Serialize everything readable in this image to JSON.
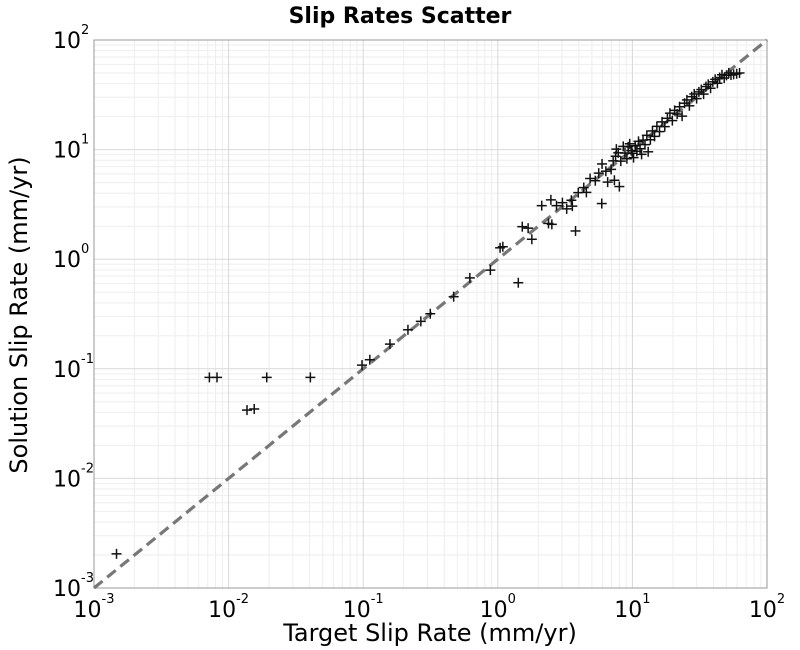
{
  "chart_data": {
    "type": "scatter",
    "title": "Slip Rates Scatter",
    "xlabel": "Target Slip Rate (mm/yr)",
    "ylabel": "Solution Slip Rate (mm/yr)",
    "x_scale": "log",
    "y_scale": "log",
    "xlim": [
      0.001,
      100
    ],
    "ylim": [
      0.001,
      100
    ],
    "x_ticks": [
      {
        "base": "10",
        "exp": "-3"
      },
      {
        "base": "10",
        "exp": "-2"
      },
      {
        "base": "10",
        "exp": "-1"
      },
      {
        "base": "10",
        "exp": "0"
      },
      {
        "base": "10",
        "exp": "1"
      },
      {
        "base": "10",
        "exp": "2"
      }
    ],
    "y_ticks": [
      {
        "base": "10",
        "exp": "-3"
      },
      {
        "base": "10",
        "exp": "-2"
      },
      {
        "base": "10",
        "exp": "-1"
      },
      {
        "base": "10",
        "exp": "0"
      },
      {
        "base": "10",
        "exp": "1"
      },
      {
        "base": "10",
        "exp": "2"
      }
    ],
    "grid": true,
    "marker": "+",
    "marker_color": "#111111",
    "reference_line": {
      "type": "y=x",
      "style": "dashed",
      "color": "#777777"
    },
    "points": [
      [
        0.00147,
        0.00205
      ],
      [
        0.0072,
        0.0835
      ],
      [
        0.0082,
        0.0835
      ],
      [
        0.0192,
        0.0835
      ],
      [
        0.0405,
        0.0835
      ],
      [
        0.0137,
        0.042
      ],
      [
        0.0155,
        0.043
      ],
      [
        0.098,
        0.108
      ],
      [
        0.112,
        0.121
      ],
      [
        0.158,
        0.168
      ],
      [
        0.215,
        0.227
      ],
      [
        0.268,
        0.271
      ],
      [
        0.315,
        0.318
      ],
      [
        0.47,
        0.455
      ],
      [
        0.62,
        0.675
      ],
      [
        0.88,
        0.795
      ],
      [
        1.04,
        1.27
      ],
      [
        1.09,
        1.3
      ],
      [
        1.42,
        0.61
      ],
      [
        1.52,
        1.98
      ],
      [
        1.68,
        1.92
      ],
      [
        1.79,
        1.52
      ],
      [
        2.12,
        3.08
      ],
      [
        2.48,
        3.48
      ],
      [
        2.38,
        2.12
      ],
      [
        2.52,
        2.08
      ],
      [
        2.73,
        3.08
      ],
      [
        3.02,
        3.28
      ],
      [
        3.25,
        2.88
      ],
      [
        3.52,
        3.45
      ],
      [
        3.58,
        3.05
      ],
      [
        3.78,
        1.81
      ],
      [
        3.96,
        4.05
      ],
      [
        4.35,
        4.5
      ],
      [
        4.55,
        4.07
      ],
      [
        4.85,
        5.45
      ],
      [
        5.3,
        5.2
      ],
      [
        5.62,
        6.1
      ],
      [
        5.92,
        3.22
      ],
      [
        5.95,
        7.4
      ],
      [
        6.35,
        6.35
      ],
      [
        6.55,
        5.05
      ],
      [
        6.95,
        6.6
      ],
      [
        7.2,
        7.9
      ],
      [
        7.35,
        5.25
      ],
      [
        7.5,
        8.7
      ],
      [
        7.6,
        10.1
      ],
      [
        7.85,
        9.35
      ],
      [
        8.0,
        4.6
      ],
      [
        8.2,
        7.85
      ],
      [
        8.55,
        10.7
      ],
      [
        8.8,
        9.3
      ],
      [
        9.1,
        8.25
      ],
      [
        9.3,
        10.6
      ],
      [
        9.55,
        11.3
      ],
      [
        9.8,
        9.8
      ],
      [
        10.0,
        9.25
      ],
      [
        10.2,
        8.45
      ],
      [
        10.5,
        10.85
      ],
      [
        10.8,
        9.65
      ],
      [
        11.1,
        11.9
      ],
      [
        11.4,
        10.2
      ],
      [
        11.7,
        9.05
      ],
      [
        12.0,
        12.2
      ],
      [
        12.4,
        11.1
      ],
      [
        12.8,
        13.5
      ],
      [
        13.1,
        9.55
      ],
      [
        13.6,
        12.3
      ],
      [
        14.1,
        14.8
      ],
      [
        14.6,
        13.2
      ],
      [
        15.2,
        16.3
      ],
      [
        15.9,
        14.6
      ],
      [
        16.6,
        17.9
      ],
      [
        17.4,
        16.2
      ],
      [
        18.2,
        19.3
      ],
      [
        19.0,
        21.5
      ],
      [
        19.8,
        18.4
      ],
      [
        20.6,
        22.8
      ],
      [
        21.5,
        21.1
      ],
      [
        22.4,
        24.6
      ],
      [
        23.4,
        20.2
      ],
      [
        24.4,
        26.5
      ],
      [
        25.4,
        28.4
      ],
      [
        26.5,
        25.1
      ],
      [
        27.6,
        30.4
      ],
      [
        28.8,
        32.2
      ],
      [
        30.0,
        29.2
      ],
      [
        31.2,
        33.6
      ],
      [
        32.5,
        35.3
      ],
      [
        33.8,
        32.1
      ],
      [
        35.2,
        37.6
      ],
      [
        36.6,
        39.4
      ],
      [
        38.1,
        36.3
      ],
      [
        39.6,
        41.5
      ],
      [
        41.2,
        43.8
      ],
      [
        42.8,
        40.3
      ],
      [
        44.5,
        45.5
      ],
      [
        46.3,
        48.2
      ],
      [
        48.1,
        44.9
      ],
      [
        50.0,
        47.6
      ],
      [
        52.0,
        50.1
      ],
      [
        54.0,
        47.9
      ],
      [
        56.5,
        48.6
      ],
      [
        59.5,
        49.2
      ],
      [
        62.5,
        50.0
      ]
    ]
  }
}
